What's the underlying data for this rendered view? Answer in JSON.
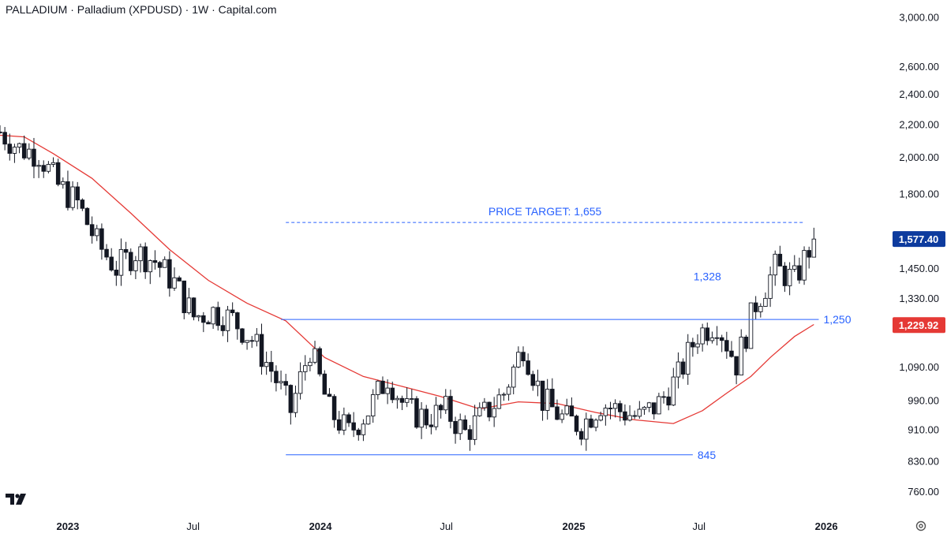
{
  "title": "PALLADIUM · Palladium (XPDUSD) · 1W · Capital.com",
  "colors": {
    "up_candle": "#ffffff",
    "down_candle": "#131722",
    "ma_line": "#e53935",
    "annotation": "#2962ff",
    "last_price_tag": "#0d3b9e",
    "ma_tag": "#e53935"
  },
  "icons": {
    "logo": "tradingview-logo-icon",
    "settings": "gear-icon"
  },
  "chart_data": {
    "type": "candlestick",
    "y_scale": "log",
    "ylim": [
      715,
      3150
    ],
    "y_ticks": [
      {
        "value": 3000,
        "label": "3,000.00"
      },
      {
        "value": 2600,
        "label": "2,600.00"
      },
      {
        "value": 2400,
        "label": "2,400.00"
      },
      {
        "value": 2200,
        "label": "2,200.00"
      },
      {
        "value": 2000,
        "label": "2,000.00"
      },
      {
        "value": 1800,
        "label": "1,800.00"
      },
      {
        "value": 1450,
        "label": "1,450.00"
      },
      {
        "value": 1330,
        "label": "1,330.00"
      },
      {
        "value": 1090,
        "label": "1,090.00"
      },
      {
        "value": 990,
        "label": "990.00"
      },
      {
        "value": 910,
        "label": "910.00"
      },
      {
        "value": 830,
        "label": "830.00"
      },
      {
        "value": 760,
        "label": "760.00"
      }
    ],
    "x_ticks": [
      {
        "date": "2023-01-01",
        "label": "2023",
        "bold": true
      },
      {
        "date": "2023-07-01",
        "label": "Jul",
        "bold": false
      },
      {
        "date": "2024-01-01",
        "label": "2024",
        "bold": true
      },
      {
        "date": "2024-07-01",
        "label": "Jul",
        "bold": false
      },
      {
        "date": "2025-01-01",
        "label": "2025",
        "bold": true
      },
      {
        "date": "2025-07-01",
        "label": "Jul",
        "bold": false
      },
      {
        "date": "2026-01-01",
        "label": "2026",
        "bold": true
      }
    ],
    "x_range": [
      "2022-09-25",
      "2026-03-08"
    ],
    "last_price": {
      "value": 1577.4,
      "label": "1,577.40"
    },
    "moving_average": {
      "value": 1229.92,
      "label": "1,229.92"
    },
    "levels": [
      {
        "label": "PRICE TARGET: 1,655",
        "value": 1655,
        "style": "dashed",
        "from": "2023-11-12",
        "to": "2025-11-30"
      },
      {
        "label": "1,250",
        "value": 1250,
        "style": "solid",
        "from": "2023-11-05",
        "to": "2025-12-21"
      },
      {
        "label": "845",
        "value": 845,
        "style": "solid",
        "from": "2023-11-12",
        "to": "2025-06-22"
      }
    ],
    "annotations": [
      {
        "label": "1,328",
        "date": "2025-07-13",
        "value": 1400
      }
    ],
    "ma_points": [
      [
        "2022-09-25",
        2130
      ],
      [
        "2022-10-30",
        2120
      ],
      [
        "2022-12-11",
        2020
      ],
      [
        "2023-02-05",
        1880
      ],
      [
        "2023-04-02",
        1700
      ],
      [
        "2023-05-28",
        1530
      ],
      [
        "2023-07-23",
        1400
      ],
      [
        "2023-09-17",
        1310
      ],
      [
        "2023-11-12",
        1245
      ],
      [
        "2024-01-07",
        1120
      ],
      [
        "2024-03-03",
        1060
      ],
      [
        "2024-04-28",
        1030
      ],
      [
        "2024-06-23",
        1000
      ],
      [
        "2024-08-18",
        965
      ],
      [
        "2024-10-13",
        985
      ],
      [
        "2024-12-08",
        980
      ],
      [
        "2025-02-02",
        955
      ],
      [
        "2025-03-30",
        935
      ],
      [
        "2025-05-25",
        925
      ],
      [
        "2025-07-06",
        960
      ],
      [
        "2025-08-10",
        1010
      ],
      [
        "2025-09-14",
        1060
      ],
      [
        "2025-10-12",
        1120
      ],
      [
        "2025-11-16",
        1190
      ],
      [
        "2025-12-14",
        1232
      ]
    ],
    "closes": [
      [
        "2022-09-25",
        2150
      ],
      [
        "2022-10-23",
        2050
      ],
      [
        "2022-11-20",
        2020
      ],
      [
        "2022-12-18",
        1840
      ],
      [
        "2023-01-15",
        1750
      ],
      [
        "2023-02-12",
        1560
      ],
      [
        "2023-03-12",
        1450
      ],
      [
        "2023-04-09",
        1520
      ],
      [
        "2023-05-07",
        1480
      ],
      [
        "2023-06-04",
        1390
      ],
      [
        "2023-07-02",
        1260
      ],
      [
        "2023-07-30",
        1280
      ],
      [
        "2023-08-27",
        1250
      ],
      [
        "2023-09-24",
        1180
      ],
      [
        "2023-10-22",
        1080
      ],
      [
        "2023-11-19",
        960
      ],
      [
        "2023-12-17",
        1150
      ],
      [
        "2024-01-14",
        960
      ],
      [
        "2024-02-11",
        900
      ],
      [
        "2024-03-10",
        960
      ],
      [
        "2024-04-07",
        1060
      ],
      [
        "2024-05-05",
        960
      ],
      [
        "2024-06-02",
        940
      ],
      [
        "2024-06-30",
        960
      ],
      [
        "2024-07-28",
        900
      ],
      [
        "2024-08-25",
        950
      ],
      [
        "2024-09-22",
        1010
      ],
      [
        "2024-10-20",
        1160
      ],
      [
        "2024-11-17",
        990
      ],
      [
        "2024-12-15",
        940
      ],
      [
        "2025-01-12",
        920
      ],
      [
        "2025-02-09",
        980
      ],
      [
        "2025-03-09",
        960
      ],
      [
        "2025-04-06",
        940
      ],
      [
        "2025-05-04",
        980
      ],
      [
        "2025-06-01",
        1060
      ],
      [
        "2025-06-29",
        1200
      ],
      [
        "2025-07-27",
        1240
      ],
      [
        "2025-08-24",
        1100
      ],
      [
        "2025-09-21",
        1310
      ],
      [
        "2025-10-19",
        1450
      ],
      [
        "2025-11-16",
        1400
      ],
      [
        "2025-12-14",
        1577.4
      ]
    ]
  }
}
